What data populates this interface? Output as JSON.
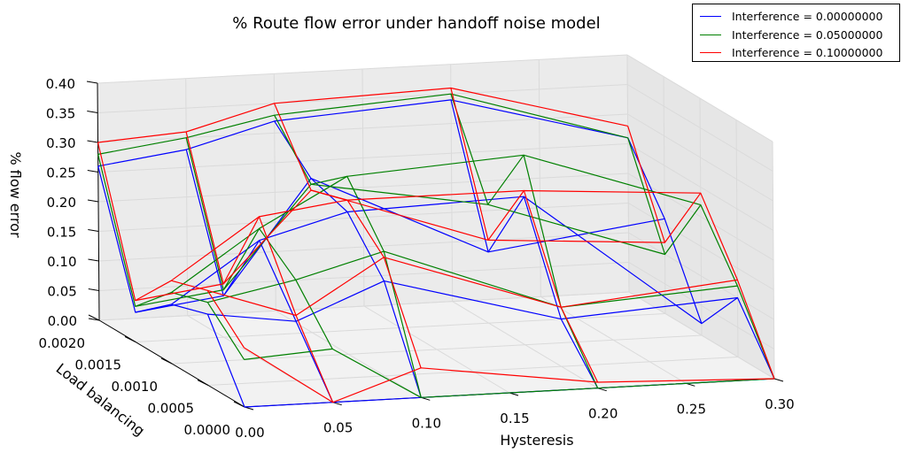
{
  "chart_data": {
    "type": "line",
    "title": "% Route flow error under handoff noise model",
    "xlabel": "Hysteresis",
    "ylabel": "Load balancing",
    "zlabel": "% flow error",
    "xlim": [
      0.0,
      0.3
    ],
    "ylim": [
      0.0,
      0.002
    ],
    "zlim": [
      0.0,
      0.4
    ],
    "x_ticks": [
      "0.00",
      "0.05",
      "0.10",
      "0.15",
      "0.20",
      "0.25",
      "0.30"
    ],
    "y_ticks": [
      "0.0000",
      "0.0005",
      "0.0010",
      "0.0015",
      "0.0020"
    ],
    "z_ticks": [
      "0.00",
      "0.05",
      "0.10",
      "0.15",
      "0.20",
      "0.25",
      "0.30",
      "0.35",
      "0.40"
    ],
    "grid": true,
    "legend_position": "top-right",
    "x": [
      0.0,
      0.05,
      0.1,
      0.2,
      0.3
    ],
    "y": [
      0.0,
      0.0005,
      0.001,
      0.0015,
      0.002
    ],
    "series": [
      {
        "name": "Interference = 0.00000000",
        "color": "#0000ff",
        "z": [
          [
            0.0,
            0.0,
            0.0,
            0.0,
            0.0
          ],
          [
            0.12,
            0.1,
            0.16,
            0.08,
            0.1
          ],
          [
            0.1,
            0.2,
            0.24,
            0.25,
            0.02
          ],
          [
            0.05,
            0.07,
            0.26,
            0.12,
            0.16
          ],
          [
            0.26,
            0.28,
            0.32,
            0.34,
            0.26
          ]
        ]
      },
      {
        "name": "Interference = 0.05000000",
        "color": "#008000",
        "z": [
          [
            0.08,
            0.09,
            0.0,
            0.0,
            0.0
          ],
          [
            0.14,
            0.17,
            0.21,
            0.1,
            0.12
          ],
          [
            0.12,
            0.22,
            0.3,
            0.32,
            0.22
          ],
          [
            0.06,
            0.08,
            0.25,
            0.2,
            0.1
          ],
          [
            0.28,
            0.3,
            0.33,
            0.35,
            0.26
          ]
        ]
      },
      {
        "name": "Interference = 0.10000000",
        "color": "#ff0000",
        "z": [
          [
            0.1,
            0.0,
            0.05,
            0.01,
            0.0
          ],
          [
            0.16,
            0.11,
            0.2,
            0.1,
            0.13
          ],
          [
            0.14,
            0.24,
            0.26,
            0.26,
            0.24
          ],
          [
            0.07,
            0.09,
            0.24,
            0.14,
            0.12
          ],
          [
            0.3,
            0.31,
            0.35,
            0.36,
            0.28
          ]
        ]
      }
    ]
  }
}
